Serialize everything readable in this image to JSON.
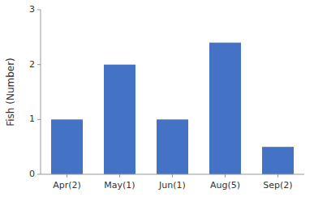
{
  "chart_data": {
    "type": "bar",
    "categories": [
      "Apr(2)",
      "May(1)",
      "Jun(1)",
      "Aug(5)",
      "Sep(2)"
    ],
    "values": [
      1.0,
      2.0,
      1.0,
      2.4,
      0.5
    ],
    "color": "#4472C4",
    "ylabel": "Fish (Number)",
    "ylim": [
      0,
      3
    ],
    "yticks": [
      0,
      1,
      2,
      3
    ],
    "grid": false
  }
}
